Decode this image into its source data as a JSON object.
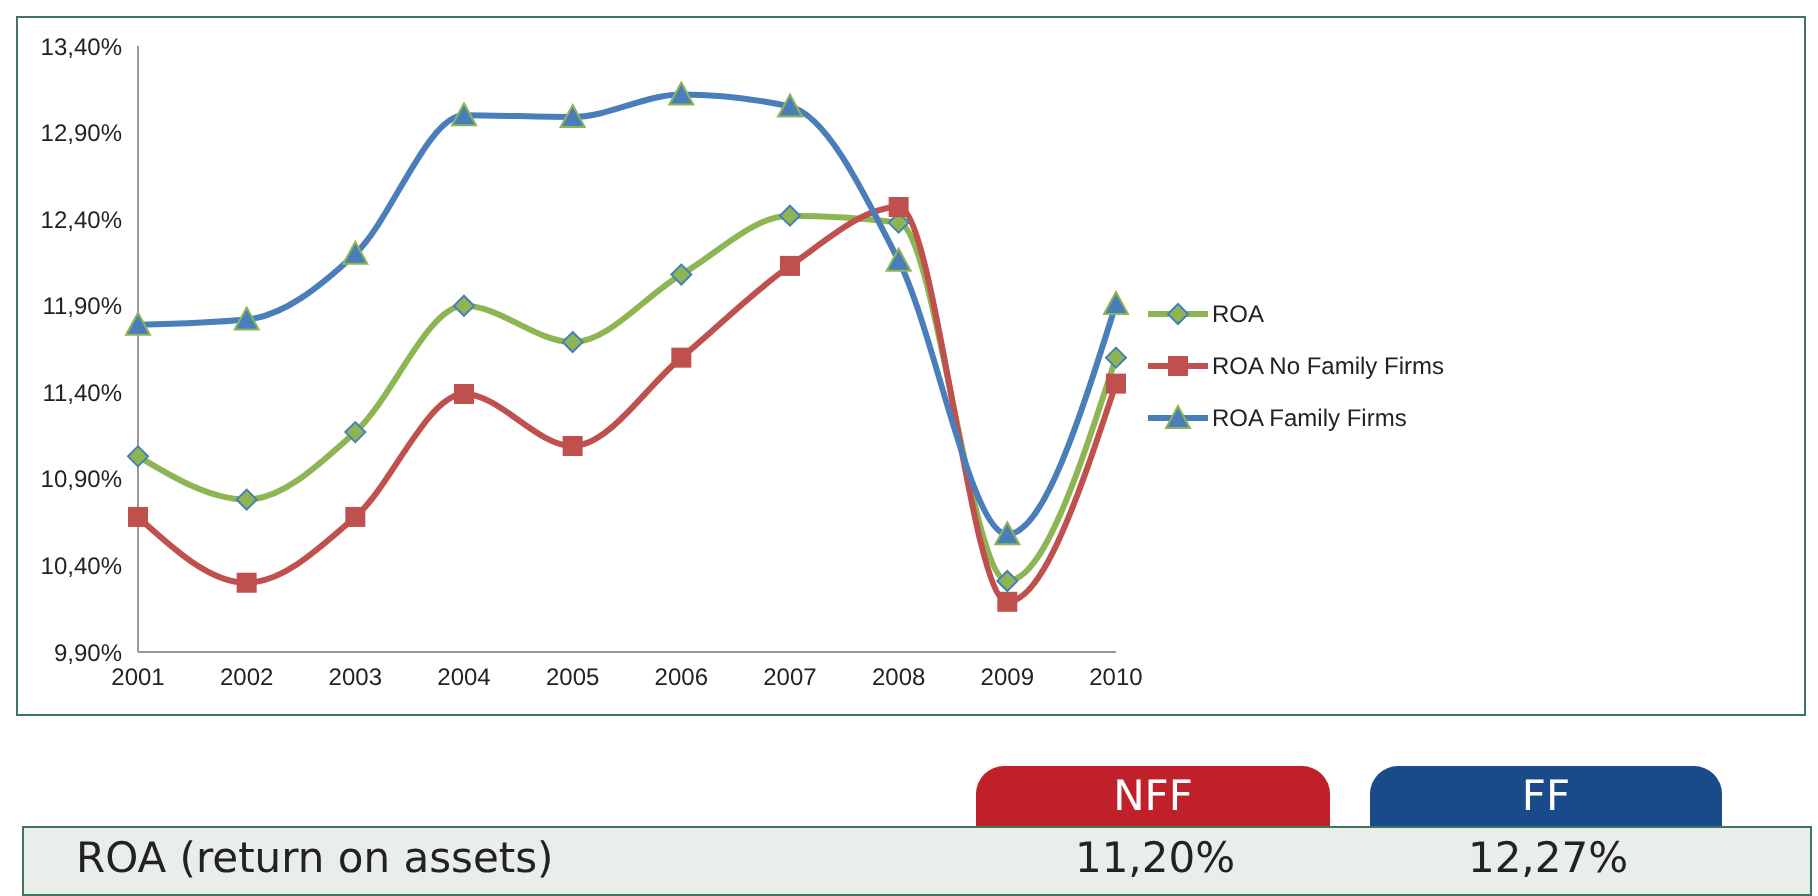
{
  "chart_data": {
    "type": "line",
    "categories": [
      "2001",
      "2002",
      "2003",
      "2004",
      "2005",
      "2006",
      "2007",
      "2008",
      "2009",
      "2010"
    ],
    "series": [
      {
        "name": "ROA",
        "color": "#8db653",
        "marker": "diamond",
        "values": [
          11.03,
          10.78,
          11.17,
          11.9,
          11.69,
          12.08,
          12.42,
          12.38,
          10.31,
          11.6
        ]
      },
      {
        "name": "ROA No Family Firms",
        "color": "#c0504d",
        "marker": "square",
        "values": [
          10.68,
          10.3,
          10.68,
          11.39,
          11.09,
          11.6,
          12.13,
          12.47,
          10.19,
          11.45
        ]
      },
      {
        "name": "ROA Family Firms",
        "color": "#4a7ebb",
        "marker": "triangle",
        "values": [
          11.79,
          11.82,
          12.2,
          13.0,
          12.99,
          13.12,
          13.05,
          12.16,
          10.58,
          11.91
        ]
      }
    ],
    "ylim": [
      9.9,
      13.4
    ],
    "yticks": [
      {
        "value": 9.9,
        "label": "9,90%"
      },
      {
        "value": 10.4,
        "label": "10,40%"
      },
      {
        "value": 10.9,
        "label": "10,90%"
      },
      {
        "value": 11.4,
        "label": "11,40%"
      },
      {
        "value": 11.9,
        "label": "11,90%"
      },
      {
        "value": 12.4,
        "label": "12,40%"
      },
      {
        "value": 12.9,
        "label": "12,90%"
      },
      {
        "value": 13.4,
        "label": "13,40%"
      }
    ],
    "grid": false,
    "legend": "right",
    "annotations": [
      "NFF",
      "FF",
      "ROA (return on assets)",
      "11,20%",
      "12,27%"
    ]
  }
}
